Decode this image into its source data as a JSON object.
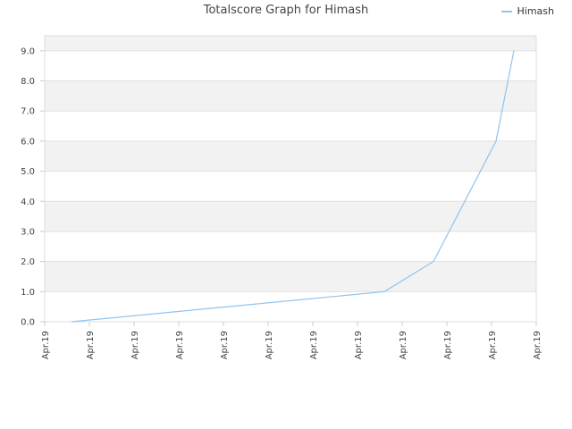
{
  "chart_data": {
    "type": "line",
    "title": "Totalscore Graph for Himash",
    "xlabel": "",
    "ylabel": "",
    "ylim": [
      0,
      9.5
    ],
    "grid": true,
    "legend_position": "top-right",
    "x_tick_labels": [
      "Apr.19",
      "Apr.19",
      "Apr.19",
      "Apr.19",
      "Apr.19",
      "Apr.19",
      "Apr.19",
      "Apr.19",
      "Apr.19",
      "Apr.19",
      "Apr.19",
      "Apr.19"
    ],
    "y_ticks": [
      "0.0",
      "1.0",
      "2.0",
      "3.0",
      "4.0",
      "5.0",
      "6.0",
      "7.0",
      "8.0",
      "9.0"
    ],
    "series": [
      {
        "name": "Himash",
        "color": "#90c3ef",
        "x": [
          0.6,
          7.6,
          8.7,
          9.4,
          10.1,
          10.5
        ],
        "values": [
          0,
          1,
          2,
          4,
          6,
          9
        ]
      }
    ]
  }
}
